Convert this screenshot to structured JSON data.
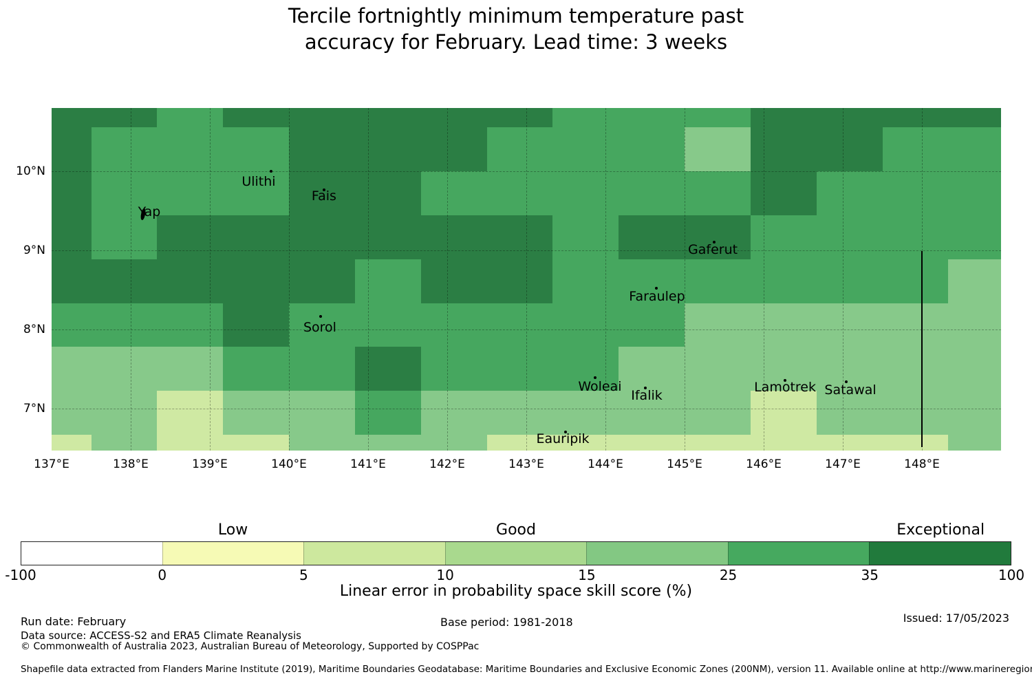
{
  "title": "Tercile fortnightly minimum temperature past\naccuracy for February. Lead time: 3 weeks",
  "chart_data": {
    "type": "heatmap",
    "title": "Tercile fortnightly minimum temperature past accuracy for February. Lead time: 3 weeks",
    "x_axis": {
      "tick_labels": [
        "137°E",
        "138°E",
        "139°E",
        "140°E",
        "141°E",
        "142°E",
        "143°E",
        "144°E",
        "145°E",
        "146°E",
        "147°E",
        "148°E"
      ],
      "tick_lons": [
        137,
        138,
        139,
        140,
        141,
        142,
        143,
        144,
        145,
        146,
        147,
        148
      ],
      "lon_min": 137.0,
      "lon_max": 149.0
    },
    "y_axis": {
      "tick_labels": [
        "10°N",
        "9°N",
        "8°N",
        "7°N"
      ],
      "tick_lats": [
        10,
        9,
        8,
        7
      ],
      "lat_max": 10.7987,
      "lat_min": 6.4683
    },
    "grid": {
      "lon_edges": [
        137.0,
        137.5,
        138.3333,
        139.1667,
        140.0,
        140.8333,
        141.6667,
        142.5,
        143.3333,
        144.1667,
        145.0,
        145.8333,
        146.6667,
        147.5,
        148.3333,
        149.0
      ],
      "lat_edges": [
        10.7987,
        10.5556,
        10.0,
        9.4444,
        8.8889,
        8.3333,
        7.7778,
        7.2222,
        6.6667,
        6.4683
      ],
      "rows": [
        "DDMDDDDDMMMDDDD",
        "DMMMDDDMMMLDDMM",
        "DMMMDDMMMMMDMMM",
        "DMDDDDDDMDDMMMM",
        "DDDDDMDDMMMMMML",
        "MMMDMMMMMMLLLLL",
        "LLLMMDMMMLLLLLL",
        "LLPLLMLLLLLPLLL",
        "PLPPLLLPPPPPPPL"
      ],
      "palette": {
        "D": {
          "hex": "#2b7e44",
          "skill_bin": "35 to 100"
        },
        "M": {
          "hex": "#46a75f",
          "skill_bin": "25 to 35"
        },
        "L": {
          "hex": "#87c98a",
          "skill_bin": "15 to 25"
        },
        "P": {
          "hex": "#cfe9a3",
          "skill_bin": "5 to 10"
        }
      }
    },
    "islands": [
      {
        "name": "Yap",
        "marker_lon": 138.148,
        "marker_lat": 9.512,
        "label_lon": 138.235,
        "label_lat": 9.486,
        "marker": "shape"
      },
      {
        "name": "Ulithi",
        "marker_lon": 139.774,
        "marker_lat": 9.999,
        "label_lon": 139.617,
        "label_lat": 9.868,
        "marker": "dot"
      },
      {
        "name": "Fais",
        "marker_lon": 140.443,
        "marker_lat": 9.764,
        "label_lon": 140.443,
        "label_lat": 9.69,
        "marker": "dot"
      },
      {
        "name": "Sorol",
        "marker_lon": 140.4,
        "marker_lat": 8.164,
        "label_lon": 140.391,
        "label_lat": 8.025,
        "marker": "dot"
      },
      {
        "name": "Gaferut",
        "marker_lon": 145.374,
        "marker_lat": 9.104,
        "label_lon": 145.357,
        "label_lat": 9.005,
        "marker": "dot"
      },
      {
        "name": "Faraulep",
        "marker_lon": 144.643,
        "marker_lat": 8.521,
        "label_lon": 144.652,
        "label_lat": 8.414,
        "marker": "dot"
      },
      {
        "name": "Woleai",
        "marker_lon": 143.87,
        "marker_lat": 7.39,
        "label_lon": 143.93,
        "label_lat": 7.274,
        "marker": "dot"
      },
      {
        "name": "Ifalik",
        "marker_lon": 144.504,
        "marker_lat": 7.26,
        "label_lon": 144.522,
        "label_lat": 7.16,
        "marker": "dot"
      },
      {
        "name": "Eauripik",
        "marker_lon": 143.496,
        "marker_lat": 6.703,
        "label_lon": 143.461,
        "label_lat": 6.613,
        "marker": "dot"
      },
      {
        "name": "Lamotrek",
        "marker_lon": 146.27,
        "marker_lat": 7.355,
        "label_lon": 146.27,
        "label_lat": 7.265,
        "marker": "dot"
      },
      {
        "name": "Satawal",
        "marker_lon": 147.043,
        "marker_lat": 7.338,
        "label_lon": 147.096,
        "label_lat": 7.23,
        "marker": "dot"
      }
    ],
    "boundary_line": {
      "lon": 148.0,
      "lat_top": 8.99,
      "lat_bottom": 6.51
    },
    "colorbar": {
      "tick_labels": [
        "-100",
        "0",
        "5",
        "10",
        "15",
        "25",
        "35",
        "100"
      ],
      "segments": [
        {
          "range": "-100 to 0",
          "color": "#ffffff"
        },
        {
          "range": "0 to 5",
          "color": "#f6fab5"
        },
        {
          "range": "5 to 10",
          "color": "#cde89e"
        },
        {
          "range": "10 to 15",
          "color": "#a9d98e"
        },
        {
          "range": "15 to 25",
          "color": "#83c883"
        },
        {
          "range": "25 to 35",
          "color": "#46a95f"
        },
        {
          "range": "35 to 100",
          "color": "#217a3c"
        }
      ],
      "category_labels": [
        {
          "text": "Low",
          "segment_index": 1
        },
        {
          "text": "Good",
          "segment_index": 3
        },
        {
          "text": "Exceptional",
          "segment_index": 6
        }
      ],
      "axis_label": "Linear error in probability space skill score (%)"
    }
  },
  "footer": {
    "run_date": "Run date: February",
    "base_period": "Base period: 1981-2018",
    "issued": "Issued: 17/05/2023",
    "data_source": "Data source: ACCESS-S2 and ERA5 Climate Reanalysis",
    "copyright": "© Commonwealth of Australia 2023, Australian Bureau of Meteorology, Supported by COSPPac",
    "shapefile_note": "Shapefile data extracted from Flanders Marine Institute (2019), Maritime Boundaries Geodatabase: Maritime Boundaries and Exclusive Economic Zones (200NM), version 11. Available online at http://www.marineregions.org/."
  }
}
